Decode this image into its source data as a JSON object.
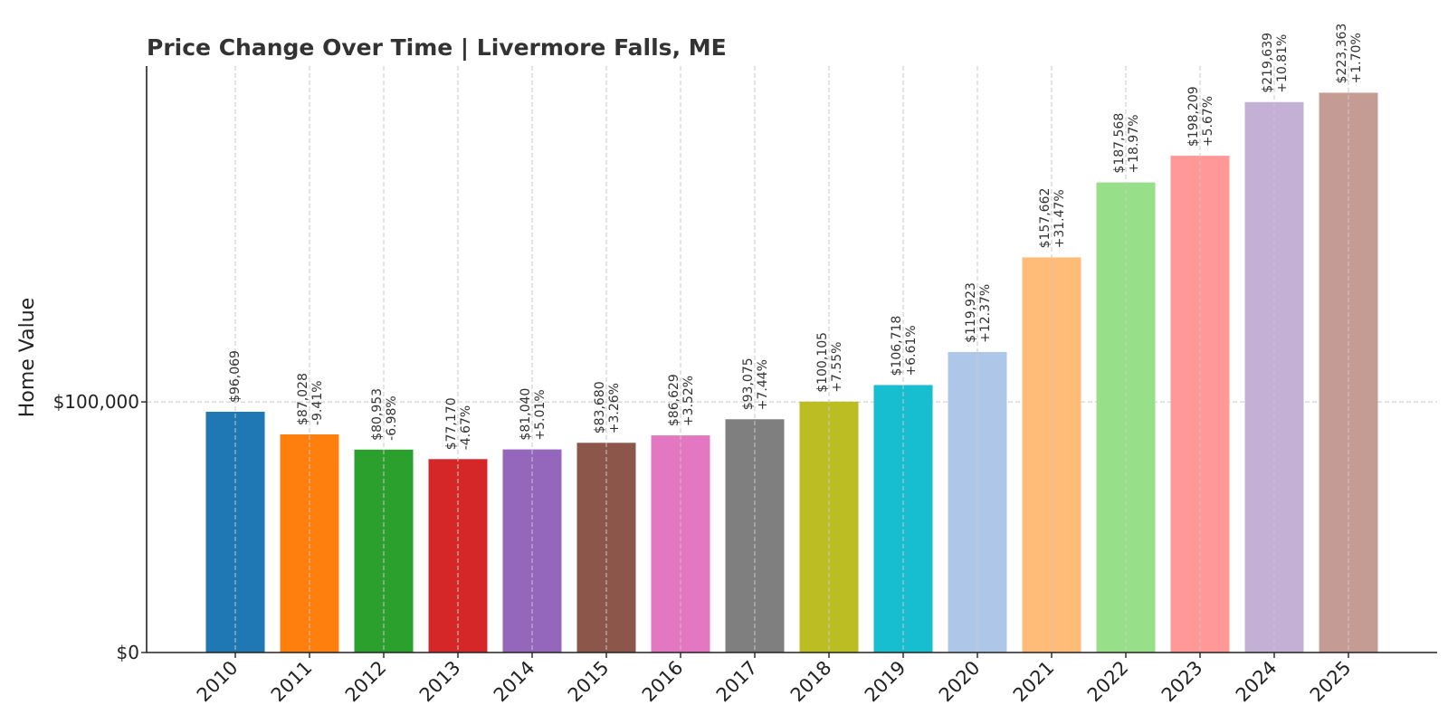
{
  "chart_data": {
    "type": "bar",
    "title": "Price Change Over Time | Livermore Falls, ME",
    "xlabel": "",
    "ylabel": "Home Value",
    "ylim": [
      0,
      234000
    ],
    "yticks": [
      {
        "value": 0,
        "label": "$0"
      },
      {
        "value": 100000,
        "label": "$100,000"
      }
    ],
    "grid": true,
    "categories": [
      "2010",
      "2011",
      "2012",
      "2013",
      "2014",
      "2015",
      "2016",
      "2017",
      "2018",
      "2019",
      "2020",
      "2021",
      "2022",
      "2023",
      "2024",
      "2025"
    ],
    "values": [
      96069,
      87028,
      80953,
      77170,
      81040,
      83680,
      86629,
      93075,
      100105,
      106718,
      119923,
      157662,
      187568,
      198209,
      219639,
      223363
    ],
    "value_labels": [
      "$96,069",
      "$87,028",
      "$80,953",
      "$77,170",
      "$81,040",
      "$83,680",
      "$86,629",
      "$93,075",
      "$100,105",
      "$106,718",
      "$119,923",
      "$157,662",
      "$187,568",
      "$198,209",
      "$219,639",
      "$223,363"
    ],
    "change_labels": [
      "",
      "-9.41%",
      "-6.98%",
      "-4.67%",
      "+5.01%",
      "+3.26%",
      "+3.52%",
      "+7.44%",
      "+7.55%",
      "+6.61%",
      "+12.37%",
      "+31.47%",
      "+18.97%",
      "+5.67%",
      "+10.81%",
      "+1.70%"
    ],
    "colors": [
      "#1f77b4",
      "#ff7f0e",
      "#2ca02c",
      "#d62728",
      "#9467bd",
      "#8c564b",
      "#e377c2",
      "#7f7f7f",
      "#bcbd22",
      "#17becf",
      "#aec7e8",
      "#ffbb78",
      "#98df8a",
      "#ff9896",
      "#c5b0d5",
      "#c49c94"
    ]
  }
}
